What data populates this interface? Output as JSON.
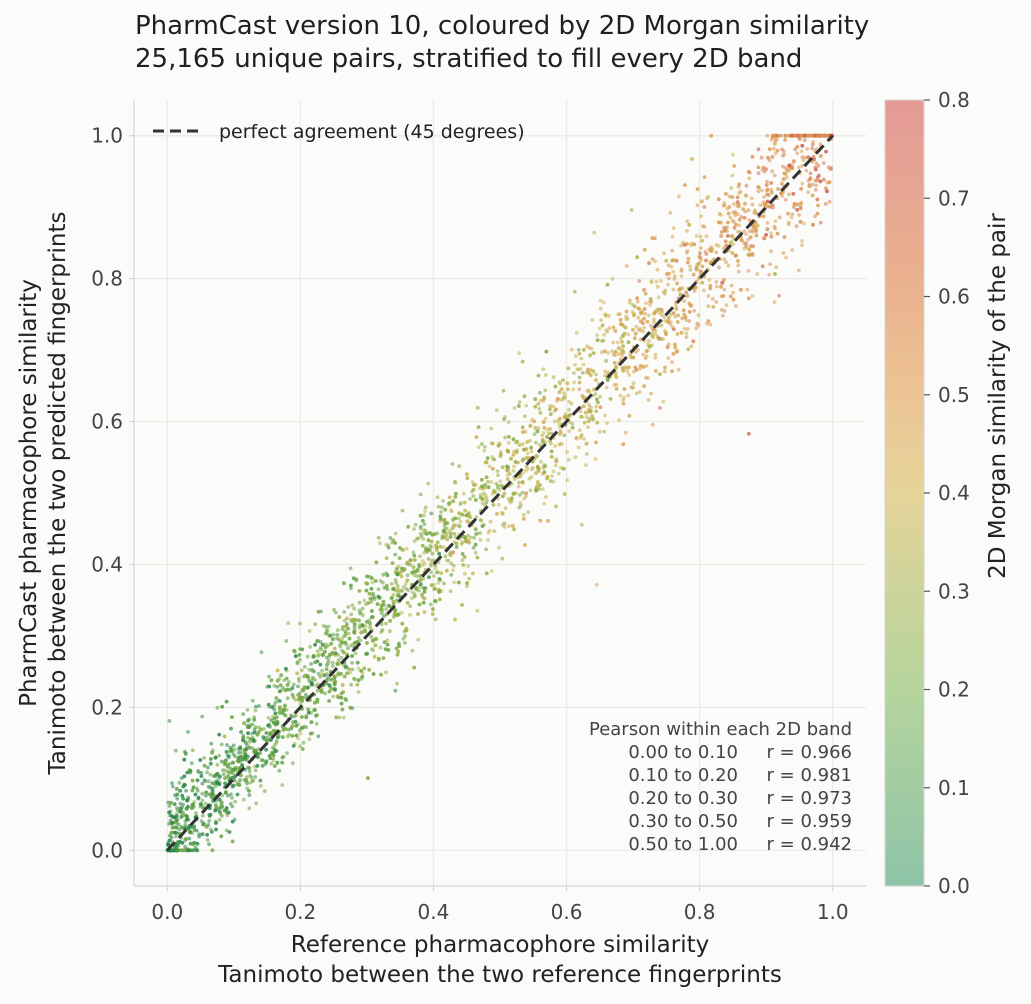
{
  "chart_data": {
    "type": "scatter",
    "title": "PharmCast version 10, coloured by 2D Morgan similarity",
    "subtitle": "25,165 unique pairs, stratified to fill every 2D band",
    "xlabel": [
      "Reference pharmacophore similarity",
      "Tanimoto between the two reference fingerprints"
    ],
    "ylabel": [
      "PharmCast pharmacophore similarity",
      "Tanimoto between the two predicted fingerprints"
    ],
    "xlim": [
      -0.05,
      1.05
    ],
    "ylim": [
      -0.05,
      1.05
    ],
    "xticks": [
      "0.0",
      "0.2",
      "0.4",
      "0.6",
      "0.8",
      "1.0"
    ],
    "yticks": [
      "0.0",
      "0.2",
      "0.4",
      "0.6",
      "0.8",
      "1.0"
    ],
    "xtick_values": [
      0,
      0.2,
      0.4,
      0.6,
      0.8,
      1.0
    ],
    "ytick_values": [
      0,
      0.2,
      0.4,
      0.6,
      0.8,
      1.0
    ],
    "grid": true,
    "legend": {
      "position": "top-left",
      "label": "perfect agreement (45 degrees)"
    },
    "reference_line": {
      "x": [
        0,
        1
      ],
      "y": [
        0,
        1
      ],
      "style": "dashed",
      "color": "#333333"
    },
    "colorbar": {
      "label": "2D Morgan similarity of the pair",
      "range": [
        0,
        0.8
      ],
      "ticks": [
        "0.0",
        "0.1",
        "0.2",
        "0.3",
        "0.4",
        "0.5",
        "0.6",
        "0.7",
        "0.8"
      ],
      "tick_values": [
        0,
        0.1,
        0.2,
        0.3,
        0.4,
        0.5,
        0.6,
        0.7,
        0.8
      ],
      "colors": [
        "#1b7f4a",
        "#5a9e3a",
        "#7ba83a",
        "#c5b84e",
        "#d9a14e",
        "#d98a55",
        "#cc4a4a"
      ]
    },
    "stats_box": {
      "header": "Pearson within each 2D band",
      "rows": [
        {
          "band": "0.00 to 0.10",
          "r": "r = 0.966"
        },
        {
          "band": "0.10 to 0.20",
          "r": "r = 0.981"
        },
        {
          "band": "0.20 to 0.30",
          "r": "r = 0.973"
        },
        {
          "band": "0.30 to 0.50",
          "r": "r = 0.959"
        },
        {
          "band": "0.50 to 1.00",
          "r": "r = 0.942"
        }
      ]
    },
    "pair_count": 25165,
    "band_pearson_r": [
      0.966,
      0.981,
      0.973,
      0.959,
      0.942
    ],
    "band_edges": [
      0.0,
      0.1,
      0.2,
      0.3,
      0.5,
      1.0
    ]
  }
}
